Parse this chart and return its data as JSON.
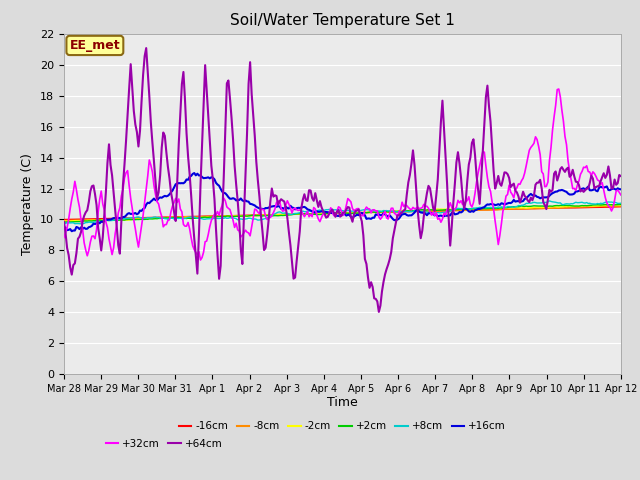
{
  "title": "Soil/Water Temperature Set 1",
  "xlabel": "Time",
  "ylabel": "Temperature (C)",
  "ylim": [
    0,
    22
  ],
  "yticks": [
    0,
    2,
    4,
    6,
    8,
    10,
    12,
    14,
    16,
    18,
    20,
    22
  ],
  "annotation_text": "EE_met",
  "annotation_color": "#8B0000",
  "annotation_bg": "#FFFF99",
  "annotation_border": "#8B6914",
  "series_order": [
    "-16cm",
    "-8cm",
    "-2cm",
    "+2cm",
    "+8cm",
    "+16cm",
    "+32cm",
    "+64cm"
  ],
  "series_colors": {
    "-16cm": "#FF0000",
    "-8cm": "#FF8C00",
    "-2cm": "#FFFF00",
    "+2cm": "#00CC00",
    "+8cm": "#00CCCC",
    "+16cm": "#0000DD",
    "+32cm": "#FF00FF",
    "+64cm": "#9900AA"
  },
  "series_lw": {
    "-16cm": 1.0,
    "-8cm": 1.0,
    "-2cm": 1.0,
    "+2cm": 1.0,
    "+8cm": 1.0,
    "+16cm": 1.5,
    "+32cm": 1.2,
    "+64cm": 1.5
  },
  "bg_color": "#DCDCDC",
  "plot_bg": "#EBEBEB",
  "grid_color": "#FFFFFF",
  "x_tick_labels": [
    "Mar 28",
    "Mar 29",
    "Mar 30",
    "Mar 31",
    "Apr 1",
    "Apr 2",
    "Apr 3",
    "Apr 4",
    "Apr 5",
    "Apr 6",
    "Apr 7",
    "Apr 8",
    "Apr 9",
    "Apr 10",
    "Apr 11",
    "Apr 12"
  ],
  "legend_row1": [
    [
      "-16cm",
      "#FF0000"
    ],
    [
      "-8cm",
      "#FF8C00"
    ],
    [
      "-2cm",
      "#FFFF00"
    ],
    [
      "+2cm",
      "#00CC00"
    ],
    [
      "+8cm",
      "#00CCCC"
    ],
    [
      "+16cm",
      "#0000DD"
    ]
  ],
  "legend_row2": [
    [
      "+32cm",
      "#FF00FF"
    ],
    [
      "+64cm",
      "#9900AA"
    ]
  ]
}
